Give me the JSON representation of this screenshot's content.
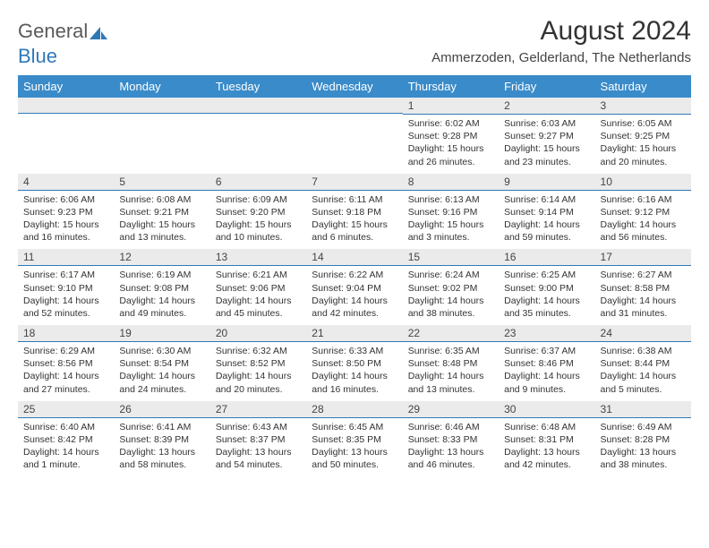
{
  "brand": {
    "part1": "General",
    "part2": "Blue"
  },
  "title": "August 2024",
  "location": "Ammerzoden, Gelderland, The Netherlands",
  "colors": {
    "header_bg": "#3a8bc9",
    "daynum_bg": "#ebebeb",
    "rule": "#2f78b8",
    "text": "#333333",
    "brand_gray": "#5a5a5a",
    "brand_blue": "#2f78b8"
  },
  "weekdays": [
    "Sunday",
    "Monday",
    "Tuesday",
    "Wednesday",
    "Thursday",
    "Friday",
    "Saturday"
  ],
  "weeks": [
    [
      null,
      null,
      null,
      null,
      {
        "n": "1",
        "sr": "6:02 AM",
        "ss": "9:28 PM",
        "dl": "15 hours and 26 minutes."
      },
      {
        "n": "2",
        "sr": "6:03 AM",
        "ss": "9:27 PM",
        "dl": "15 hours and 23 minutes."
      },
      {
        "n": "3",
        "sr": "6:05 AM",
        "ss": "9:25 PM",
        "dl": "15 hours and 20 minutes."
      }
    ],
    [
      {
        "n": "4",
        "sr": "6:06 AM",
        "ss": "9:23 PM",
        "dl": "15 hours and 16 minutes."
      },
      {
        "n": "5",
        "sr": "6:08 AM",
        "ss": "9:21 PM",
        "dl": "15 hours and 13 minutes."
      },
      {
        "n": "6",
        "sr": "6:09 AM",
        "ss": "9:20 PM",
        "dl": "15 hours and 10 minutes."
      },
      {
        "n": "7",
        "sr": "6:11 AM",
        "ss": "9:18 PM",
        "dl": "15 hours and 6 minutes."
      },
      {
        "n": "8",
        "sr": "6:13 AM",
        "ss": "9:16 PM",
        "dl": "15 hours and 3 minutes."
      },
      {
        "n": "9",
        "sr": "6:14 AM",
        "ss": "9:14 PM",
        "dl": "14 hours and 59 minutes."
      },
      {
        "n": "10",
        "sr": "6:16 AM",
        "ss": "9:12 PM",
        "dl": "14 hours and 56 minutes."
      }
    ],
    [
      {
        "n": "11",
        "sr": "6:17 AM",
        "ss": "9:10 PM",
        "dl": "14 hours and 52 minutes."
      },
      {
        "n": "12",
        "sr": "6:19 AM",
        "ss": "9:08 PM",
        "dl": "14 hours and 49 minutes."
      },
      {
        "n": "13",
        "sr": "6:21 AM",
        "ss": "9:06 PM",
        "dl": "14 hours and 45 minutes."
      },
      {
        "n": "14",
        "sr": "6:22 AM",
        "ss": "9:04 PM",
        "dl": "14 hours and 42 minutes."
      },
      {
        "n": "15",
        "sr": "6:24 AM",
        "ss": "9:02 PM",
        "dl": "14 hours and 38 minutes."
      },
      {
        "n": "16",
        "sr": "6:25 AM",
        "ss": "9:00 PM",
        "dl": "14 hours and 35 minutes."
      },
      {
        "n": "17",
        "sr": "6:27 AM",
        "ss": "8:58 PM",
        "dl": "14 hours and 31 minutes."
      }
    ],
    [
      {
        "n": "18",
        "sr": "6:29 AM",
        "ss": "8:56 PM",
        "dl": "14 hours and 27 minutes."
      },
      {
        "n": "19",
        "sr": "6:30 AM",
        "ss": "8:54 PM",
        "dl": "14 hours and 24 minutes."
      },
      {
        "n": "20",
        "sr": "6:32 AM",
        "ss": "8:52 PM",
        "dl": "14 hours and 20 minutes."
      },
      {
        "n": "21",
        "sr": "6:33 AM",
        "ss": "8:50 PM",
        "dl": "14 hours and 16 minutes."
      },
      {
        "n": "22",
        "sr": "6:35 AM",
        "ss": "8:48 PM",
        "dl": "14 hours and 13 minutes."
      },
      {
        "n": "23",
        "sr": "6:37 AM",
        "ss": "8:46 PM",
        "dl": "14 hours and 9 minutes."
      },
      {
        "n": "24",
        "sr": "6:38 AM",
        "ss": "8:44 PM",
        "dl": "14 hours and 5 minutes."
      }
    ],
    [
      {
        "n": "25",
        "sr": "6:40 AM",
        "ss": "8:42 PM",
        "dl": "14 hours and 1 minute."
      },
      {
        "n": "26",
        "sr": "6:41 AM",
        "ss": "8:39 PM",
        "dl": "13 hours and 58 minutes."
      },
      {
        "n": "27",
        "sr": "6:43 AM",
        "ss": "8:37 PM",
        "dl": "13 hours and 54 minutes."
      },
      {
        "n": "28",
        "sr": "6:45 AM",
        "ss": "8:35 PM",
        "dl": "13 hours and 50 minutes."
      },
      {
        "n": "29",
        "sr": "6:46 AM",
        "ss": "8:33 PM",
        "dl": "13 hours and 46 minutes."
      },
      {
        "n": "30",
        "sr": "6:48 AM",
        "ss": "8:31 PM",
        "dl": "13 hours and 42 minutes."
      },
      {
        "n": "31",
        "sr": "6:49 AM",
        "ss": "8:28 PM",
        "dl": "13 hours and 38 minutes."
      }
    ]
  ],
  "labels": {
    "sunrise": "Sunrise:",
    "sunset": "Sunset:",
    "daylight": "Daylight:"
  }
}
